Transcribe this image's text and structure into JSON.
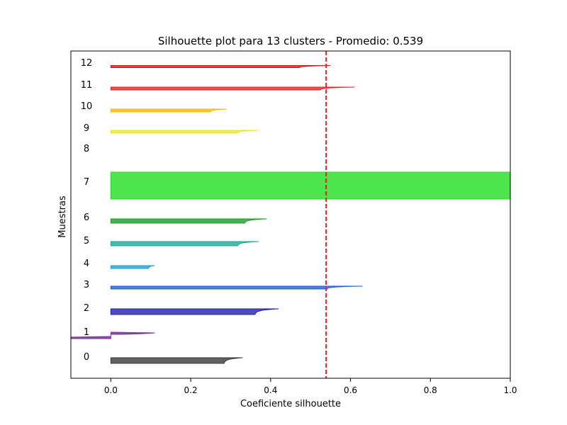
{
  "chart_data": {
    "type": "silhouette",
    "title": "Silhouette plot para 13 clusters - Promedio: 0.539",
    "xlabel": "Coeficiente silhouette",
    "ylabel": "Muestras",
    "xlim": [
      -0.1,
      1.0
    ],
    "xticks": [
      0.0,
      0.2,
      0.4,
      0.6,
      0.8,
      1.0
    ],
    "xtick_labels": [
      "0.0",
      "0.2",
      "0.4",
      "0.6",
      "0.8",
      "1.0"
    ],
    "average_line": {
      "value": 0.539,
      "color": "#d62728",
      "style": "dashed"
    },
    "grid": false,
    "clusters": [
      {
        "label": "0",
        "color": "#3a3a3a",
        "peak": 0.33,
        "tail": 0.0,
        "shape": "curve"
      },
      {
        "label": "1",
        "color": "#7b2d9c",
        "peak": 0.11,
        "tail": -0.1,
        "shape": "step"
      },
      {
        "label": "2",
        "color": "#2020b0",
        "peak": 0.42,
        "tail": 0.0,
        "shape": "curve"
      },
      {
        "label": "3",
        "color": "#1f5fd6",
        "peak": 0.63,
        "tail": 0.0,
        "shape": "curve"
      },
      {
        "label": "4",
        "color": "#1f9fd6",
        "peak": 0.11,
        "tail": 0.0,
        "shape": "curve"
      },
      {
        "label": "5",
        "color": "#1aa89a",
        "peak": 0.37,
        "tail": 0.0,
        "shape": "curve"
      },
      {
        "label": "6",
        "color": "#1e9e2a",
        "peak": 0.39,
        "tail": 0.0,
        "shape": "curve"
      },
      {
        "label": "7",
        "color": "#22dd22",
        "peak": 1.0,
        "tail": 1.0,
        "shape": "rect"
      },
      {
        "label": "8",
        "color": "#99d42a",
        "peak": 0.0,
        "tail": 0.0,
        "shape": "empty"
      },
      {
        "label": "9",
        "color": "#e8e820",
        "peak": 0.37,
        "tail": 0.0,
        "shape": "curve"
      },
      {
        "label": "10",
        "color": "#f5b800",
        "peak": 0.29,
        "tail": 0.0,
        "shape": "curve"
      },
      {
        "label": "11",
        "color": "#e82020",
        "peak": 0.61,
        "tail": 0.0,
        "shape": "curve"
      },
      {
        "label": "12",
        "color": "#cc1a1a",
        "peak": 0.55,
        "tail": 0.0,
        "shape": "curve"
      }
    ]
  }
}
